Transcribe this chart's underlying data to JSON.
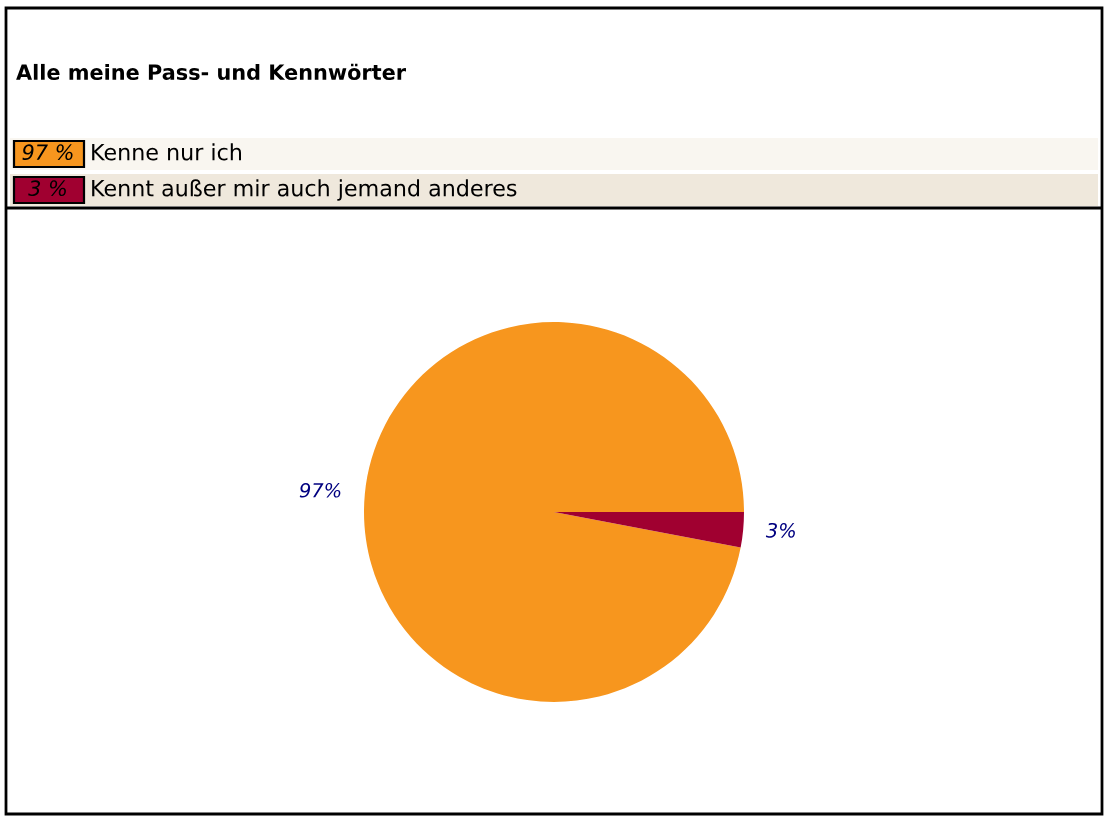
{
  "chart_data": {
    "type": "pie",
    "title": "Alle meine Pass- und Kennwörter",
    "categories": [
      "Kenne nur ich",
      "Kennt außer mir auch jemand anderes"
    ],
    "values": [
      97,
      3
    ],
    "colors": [
      "#f7961e",
      "#a00030"
    ],
    "value_labels": [
      "97%",
      "3%"
    ],
    "annotations": [
      "97 %",
      "3 %"
    ],
    "legend": "top left"
  }
}
